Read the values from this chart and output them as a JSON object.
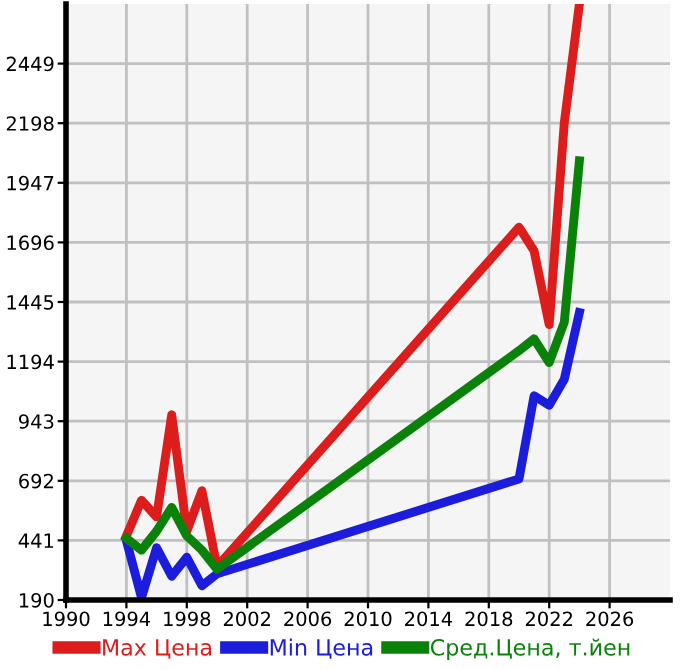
{
  "chart_data": {
    "type": "line",
    "x": [
      1994,
      1995,
      1996,
      1997,
      1998,
      1999,
      2000,
      2020,
      2021,
      2022,
      2023,
      2024
    ],
    "series": [
      {
        "name": "Max Цена",
        "color": "#dd1c1c",
        "values": [
          460,
          610,
          540,
          970,
          480,
          650,
          330,
          1760,
          1660,
          1350,
          2200,
          2700
        ]
      },
      {
        "name": "Min Цена",
        "color": "#1c1cdd",
        "values": [
          440,
          200,
          410,
          290,
          370,
          250,
          300,
          700,
          1050,
          1010,
          1120,
          1400
        ]
      },
      {
        "name": "Сред.Цена, т.йен",
        "color": "#0a820a",
        "values": [
          450,
          400,
          480,
          580,
          460,
          400,
          320,
          1240,
          1290,
          1190,
          1360,
          2040
        ]
      }
    ],
    "xlim": [
      1990,
      2030
    ],
    "xticks": [
      1990,
      1994,
      1998,
      2002,
      2006,
      2010,
      2014,
      2018,
      2022,
      2026
    ],
    "ylim": [
      190,
      2700
    ],
    "yticks": [
      190,
      441,
      692,
      943,
      1194,
      1445,
      1696,
      1947,
      2198,
      2449
    ],
    "grid": true,
    "legend": "bottom",
    "marker": "none",
    "line_style": "solid"
  }
}
